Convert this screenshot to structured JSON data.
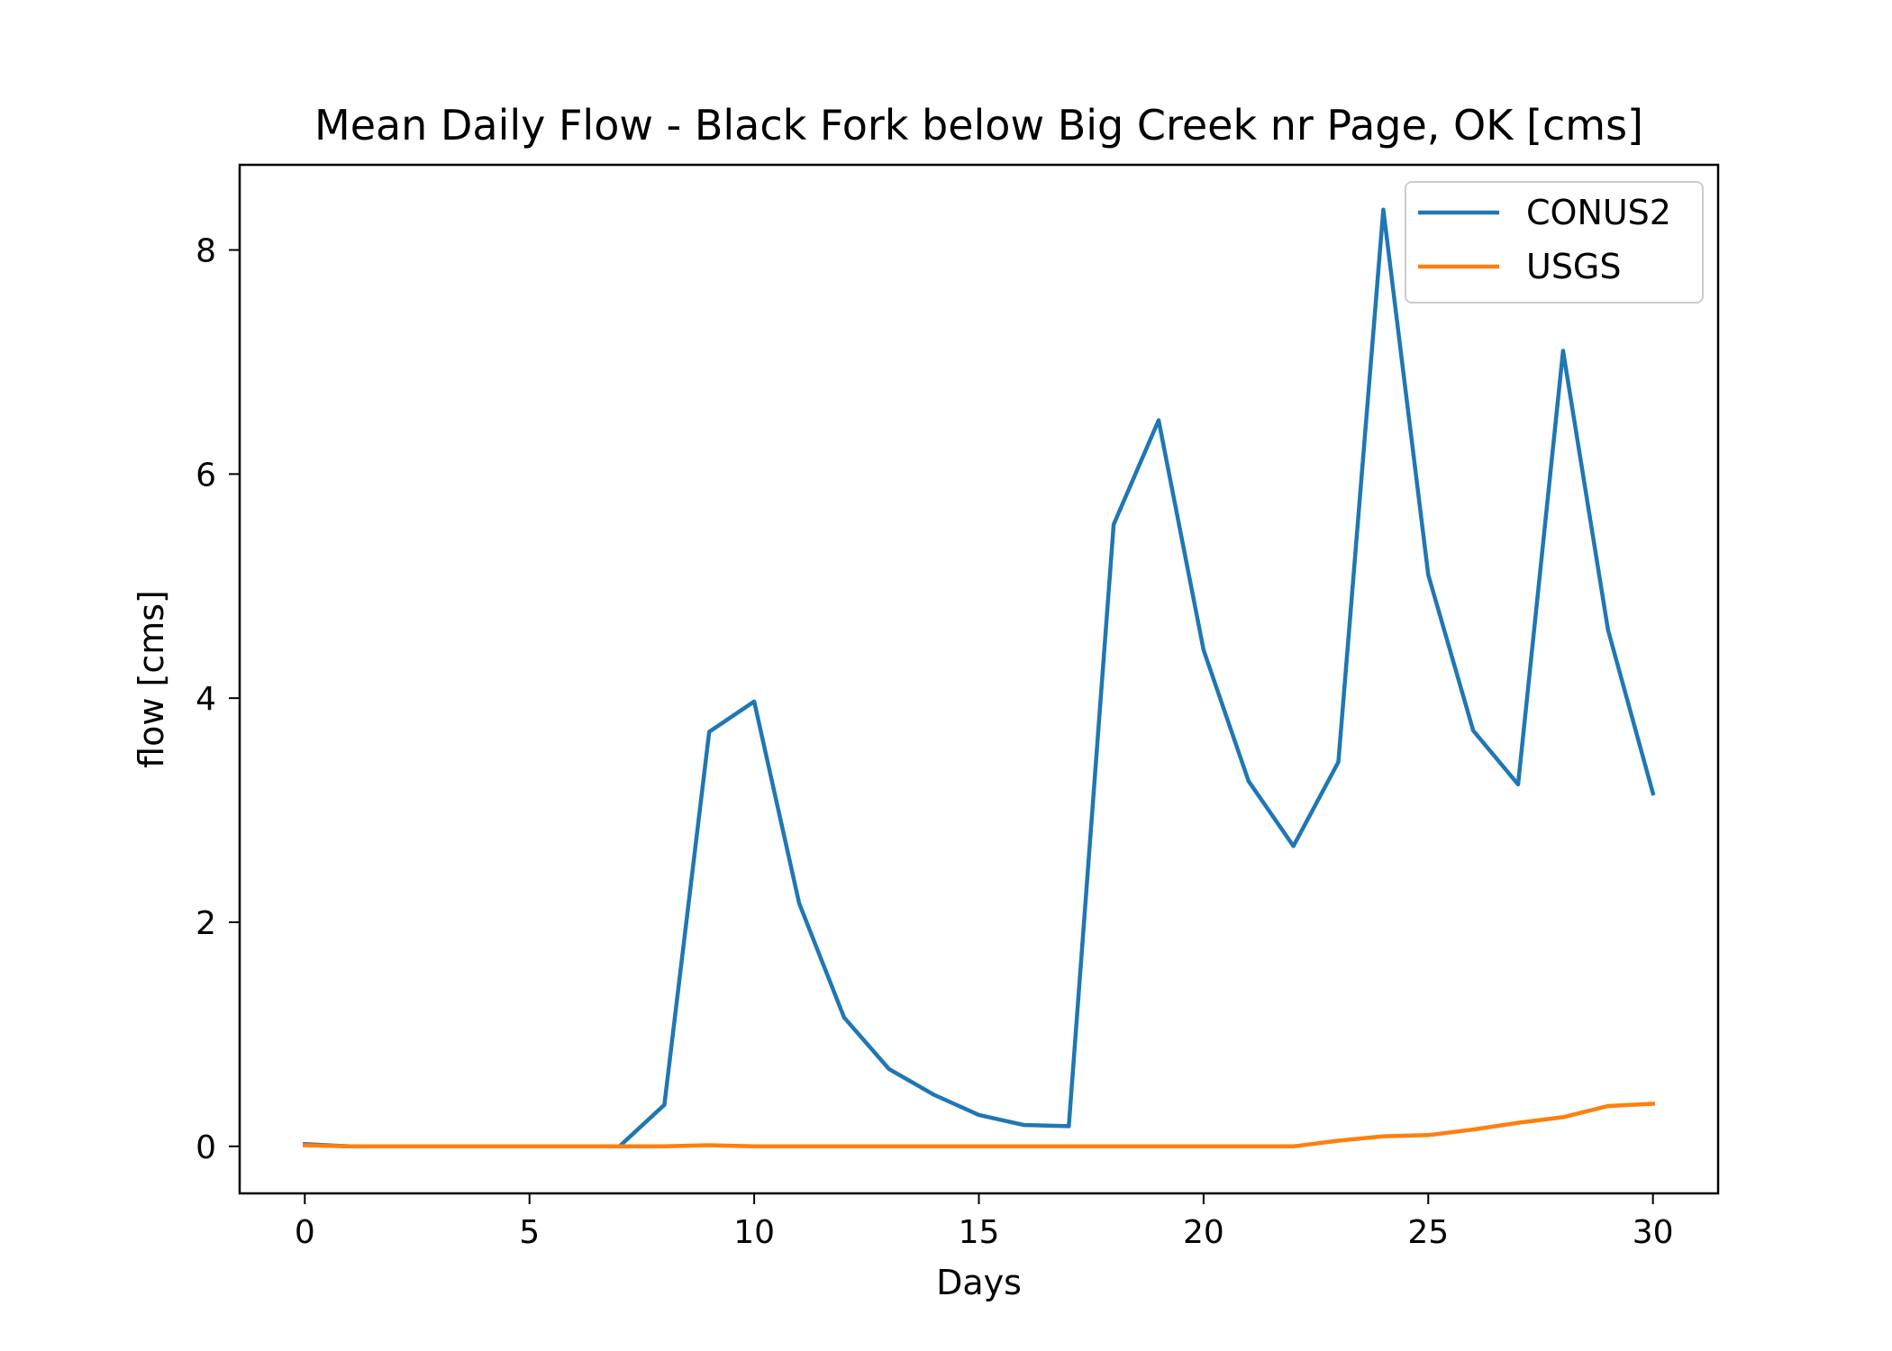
{
  "chart_data": {
    "type": "line",
    "title": "Mean Daily Flow - Black Fork below Big Creek nr Page, OK [cms]",
    "xlabel": "Days",
    "ylabel": "flow [cms]",
    "xlim": [
      -1.45,
      31.45
    ],
    "ylim": [
      -0.42,
      8.76
    ],
    "xticks": [
      0,
      5,
      10,
      15,
      20,
      25,
      30
    ],
    "xtick_labels": [
      "0",
      "5",
      "10",
      "15",
      "20",
      "25",
      "30"
    ],
    "yticks": [
      0,
      2,
      4,
      6,
      8
    ],
    "ytick_labels": [
      "0",
      "2",
      "4",
      "6",
      "8"
    ],
    "grid": false,
    "legend_position": "upper-right",
    "x": [
      0,
      1,
      2,
      3,
      4,
      5,
      6,
      7,
      8,
      9,
      10,
      11,
      12,
      13,
      14,
      15,
      16,
      17,
      18,
      19,
      20,
      21,
      22,
      23,
      24,
      25,
      26,
      27,
      28,
      29,
      30
    ],
    "series": [
      {
        "name": "CONUS2",
        "color": "#1f77b4",
        "values": [
          0.02,
          0.0,
          0.0,
          0.0,
          0.0,
          0.0,
          0.0,
          0.0,
          0.37,
          3.7,
          3.97,
          2.17,
          1.15,
          0.69,
          0.46,
          0.28,
          0.19,
          0.18,
          5.55,
          6.48,
          4.43,
          3.26,
          2.68,
          3.43,
          8.36,
          5.1,
          3.71,
          3.23,
          7.1,
          4.61,
          3.15
        ]
      },
      {
        "name": "USGS",
        "color": "#ff7f0e",
        "values": [
          0.01,
          0.0,
          0.0,
          0.0,
          0.0,
          0.0,
          0.0,
          0.0,
          0.0,
          0.01,
          0.0,
          0.0,
          0.0,
          0.0,
          0.0,
          0.0,
          0.0,
          0.0,
          0.0,
          0.0,
          0.0,
          0.0,
          0.0,
          0.05,
          0.09,
          0.1,
          0.15,
          0.21,
          0.26,
          0.36,
          0.38
        ]
      }
    ]
  }
}
